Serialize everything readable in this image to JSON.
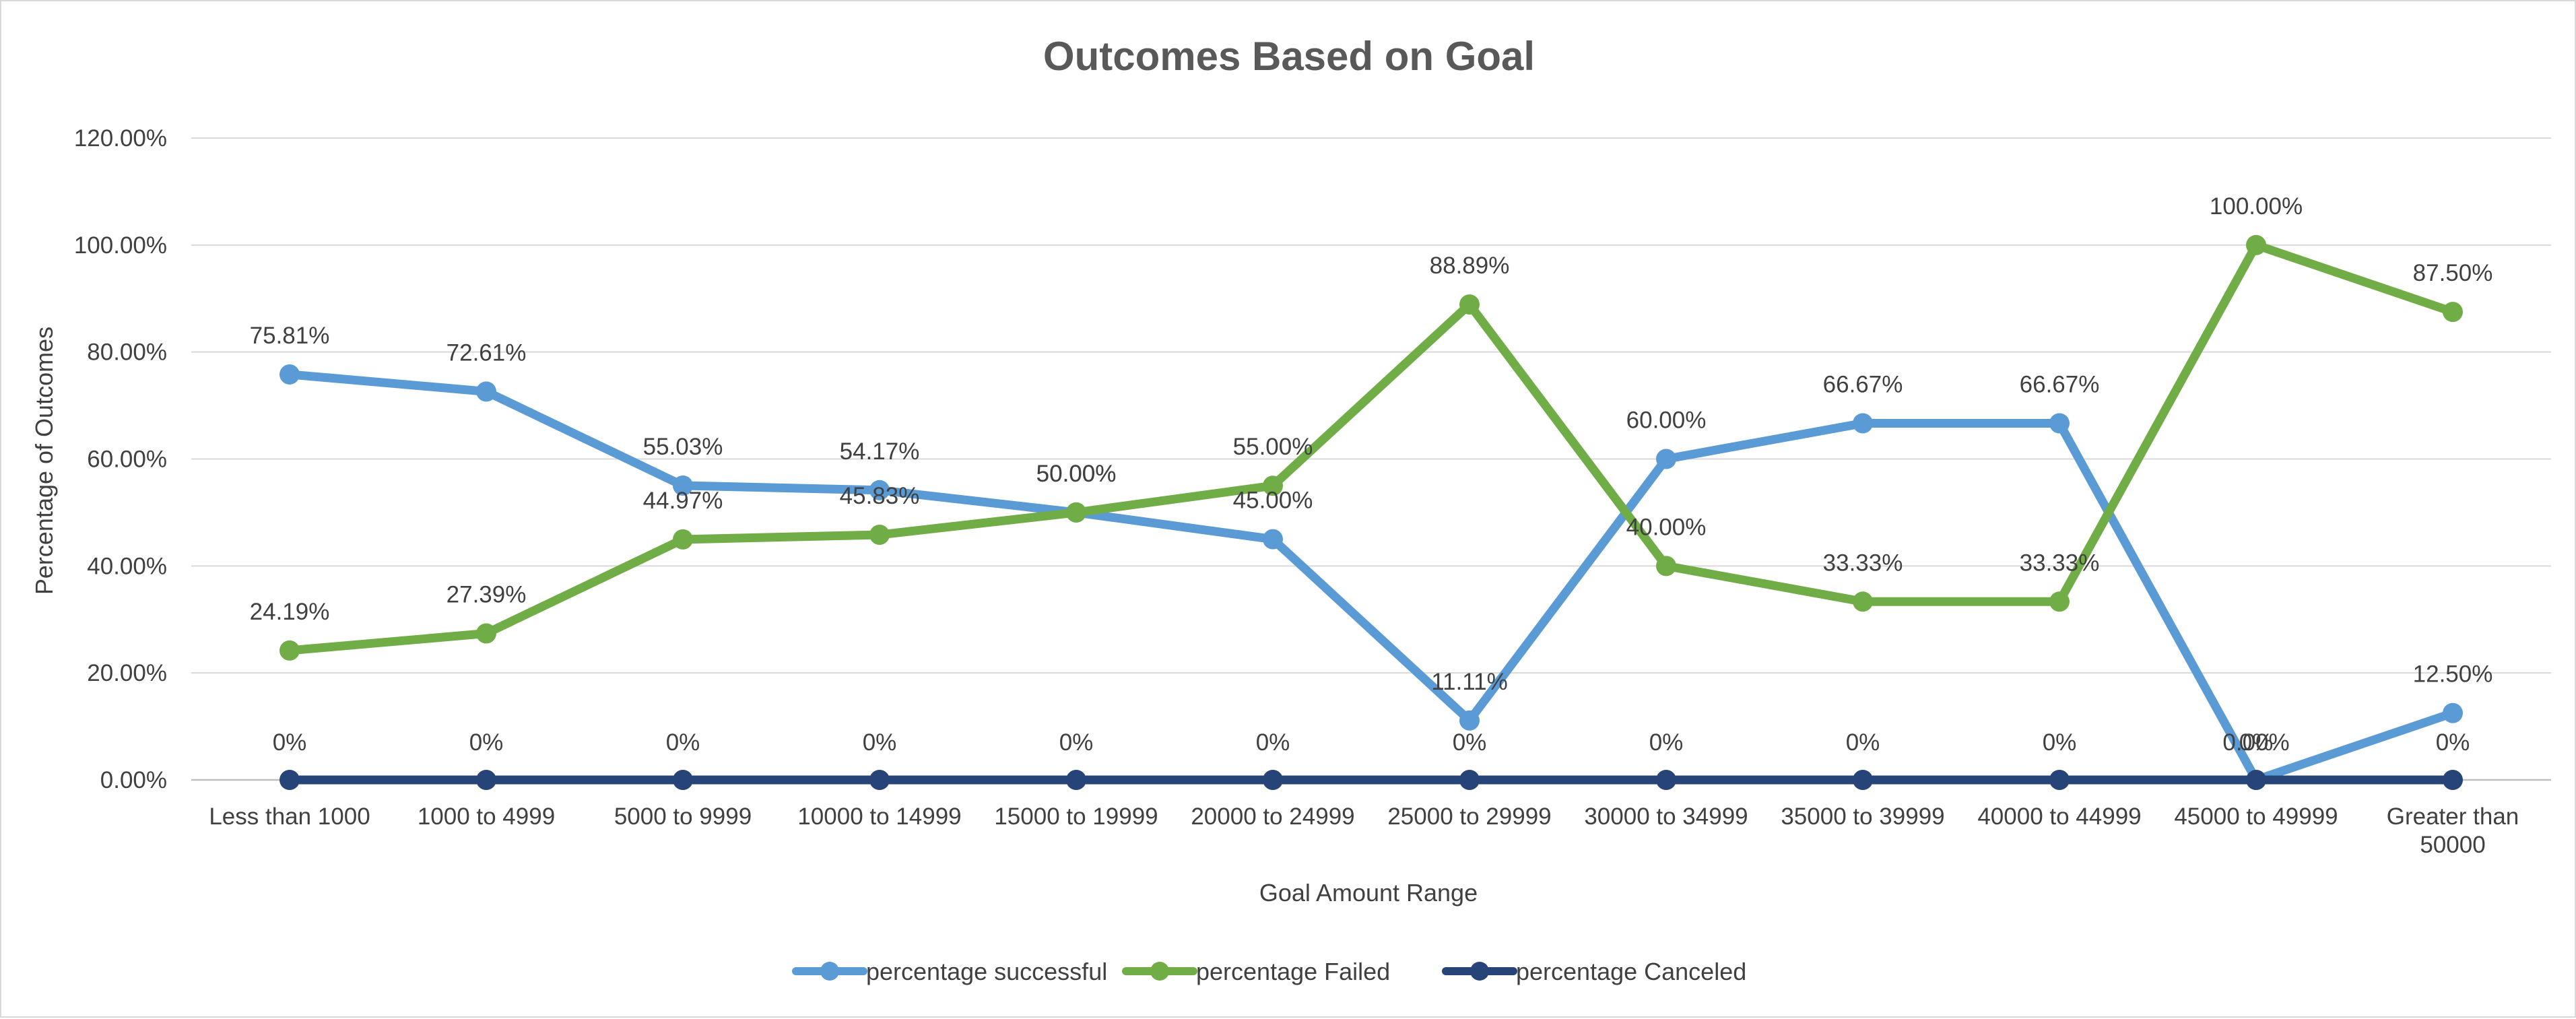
{
  "chart_data": {
    "type": "line",
    "title": "Outcomes Based on Goal",
    "xlabel": "Goal Amount Range",
    "ylabel": "Percentage of Outcomes",
    "ylim": [
      0,
      120
    ],
    "yticks": [
      "0.00%",
      "20.00%",
      "40.00%",
      "60.00%",
      "80.00%",
      "100.00%",
      "120.00%"
    ],
    "grid": true,
    "legend_position": "bottom",
    "categories": [
      [
        "Less than 1000"
      ],
      [
        "1000 to 4999"
      ],
      [
        "5000 to 9999"
      ],
      [
        "10000 to 14999"
      ],
      [
        "15000 to 19999"
      ],
      [
        "20000 to 24999"
      ],
      [
        "25000 to 29999"
      ],
      [
        "30000 to 34999"
      ],
      [
        "35000 to 39999"
      ],
      [
        "40000 to 44999"
      ],
      [
        "45000 to 49999"
      ],
      [
        "Greater than",
        "50000"
      ]
    ],
    "series": [
      {
        "name": "percentage successful",
        "color": "#5b9bd5",
        "values": [
          75.81,
          72.61,
          55.03,
          54.17,
          50.0,
          45.0,
          11.11,
          60.0,
          66.67,
          66.67,
          0.0,
          12.5
        ],
        "labels": [
          "75.81%",
          "72.61%",
          "55.03%",
          "54.17%",
          "50.00%",
          "45.00%",
          "11.11%",
          "60.00%",
          "66.67%",
          "66.67%",
          "0.00%",
          "12.50%"
        ]
      },
      {
        "name": "percentage Failed",
        "color": "#70ad47",
        "values": [
          24.19,
          27.39,
          44.97,
          45.83,
          50.0,
          55.0,
          88.89,
          40.0,
          33.33,
          33.33,
          100.0,
          87.5
        ],
        "labels": [
          "24.19%",
          "27.39%",
          "44.97%",
          "45.83%",
          "50.00%",
          "55.00%",
          "88.89%",
          "40.00%",
          "33.33%",
          "33.33%",
          "100.00%",
          "87.50%"
        ]
      },
      {
        "name": "percentage Canceled",
        "color": "#264478",
        "values": [
          0,
          0,
          0,
          0,
          0,
          0,
          0,
          0,
          0,
          0,
          0,
          0
        ],
        "labels": [
          "0%",
          "0%",
          "0%",
          "0%",
          "0%",
          "0%",
          "0%",
          "0%",
          "0%",
          "0%",
          "0%",
          "0%"
        ]
      }
    ]
  }
}
